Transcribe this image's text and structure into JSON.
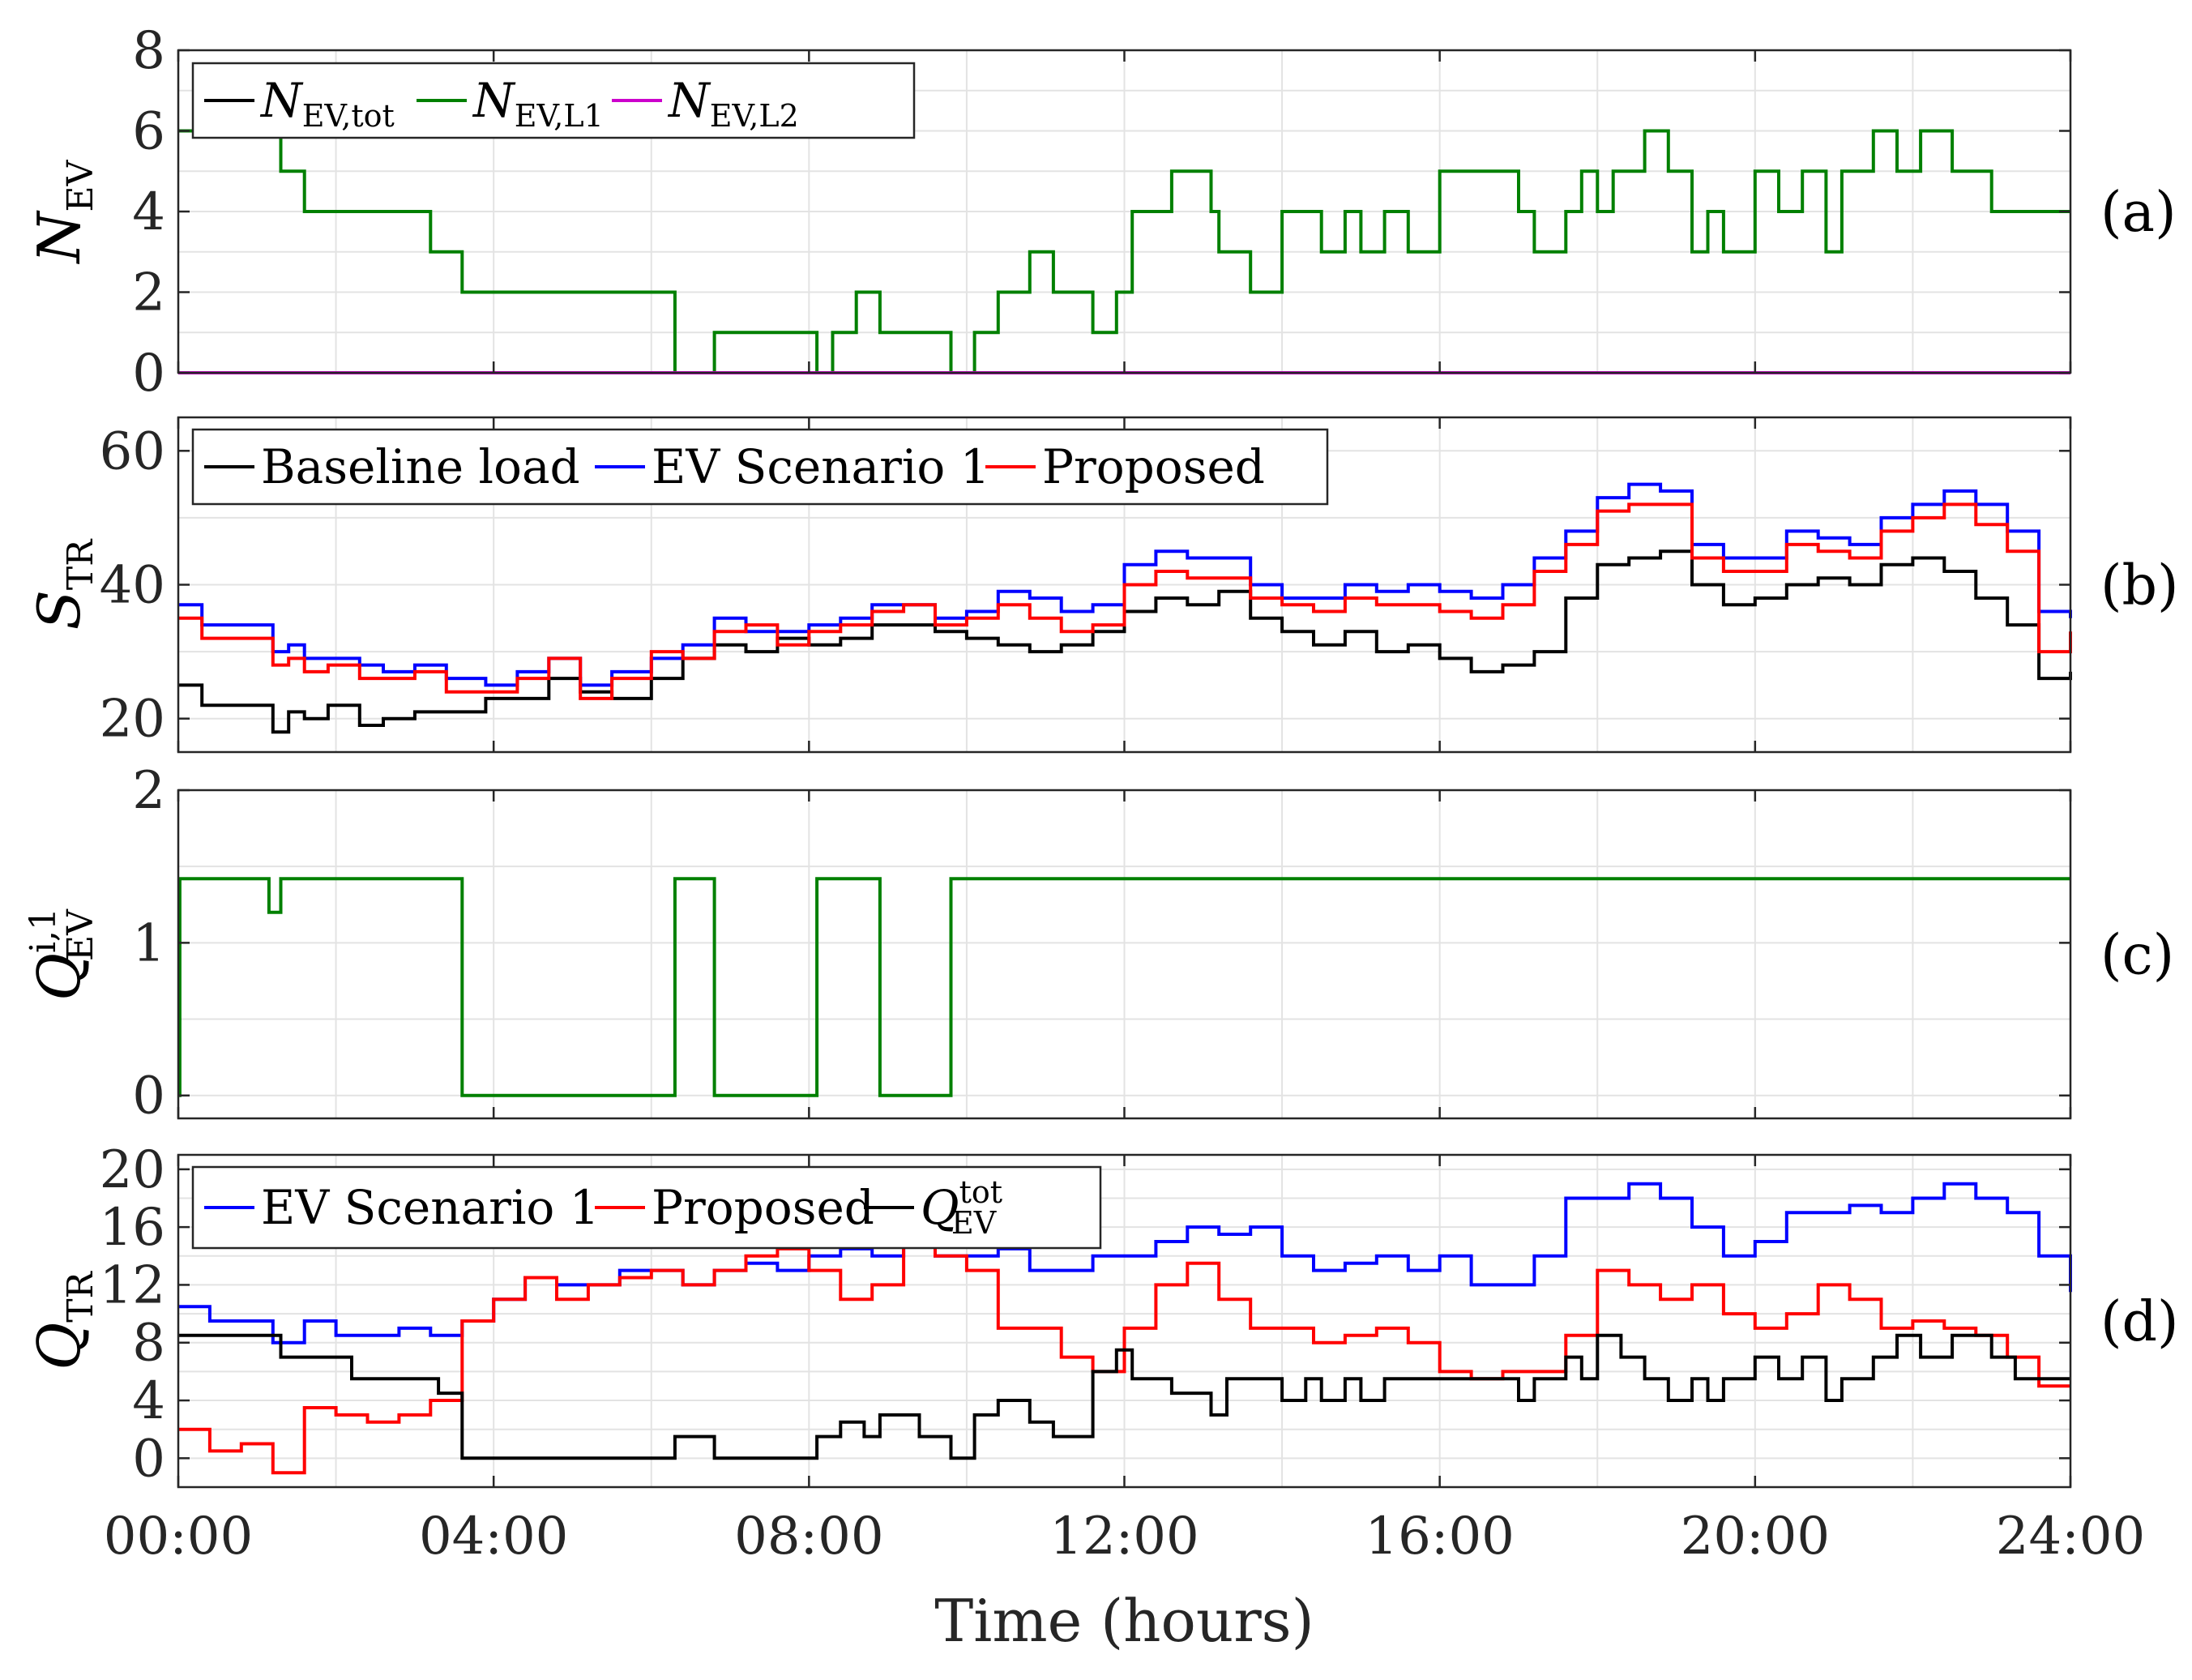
{
  "chart_data": [
    {
      "id": "a",
      "type": "line",
      "panel_tag": "(a)",
      "ylabel": {
        "main": "N",
        "sub": "EV"
      },
      "ylim": [
        0,
        8
      ],
      "yticks": [
        "0",
        "2",
        "4",
        "6",
        "8"
      ],
      "xlim": [
        0,
        24
      ],
      "grid": true,
      "legend": {
        "position": "top-left"
      },
      "series": [
        {
          "name": "N_EV,tot",
          "name_main": "N",
          "name_sub": "EV,tot",
          "color": "#000000",
          "x": [
            0,
            24
          ],
          "values": [
            0,
            0
          ]
        },
        {
          "name": "N_EV,L1",
          "name_main": "N",
          "name_sub": "EV,L1",
          "color": "#008000",
          "x": [
            0,
            0.02,
            1.3,
            1.6,
            3.0,
            3.2,
            3.6,
            6.3,
            6.8,
            8.1,
            8.3,
            8.6,
            8.9,
            9.8,
            10.1,
            10.4,
            10.8,
            11.1,
            11.6,
            11.9,
            12.1,
            12.6,
            13.1,
            13.2,
            13.6,
            14.0,
            14.3,
            14.5,
            14.8,
            15.0,
            15.3,
            15.6,
            16.0,
            17.0,
            17.2,
            17.6,
            17.8,
            18.0,
            18.2,
            18.6,
            18.9,
            19.2,
            19.4,
            19.6,
            20.0,
            20.3,
            20.6,
            20.9,
            21.1,
            21.5,
            21.8,
            22.1,
            22.5,
            23.0,
            23.3,
            23.7,
            24.0
          ],
          "values": [
            6,
            6,
            5,
            4,
            4,
            3,
            2,
            0,
            1,
            0,
            1,
            2,
            1,
            0,
            1,
            2,
            3,
            2,
            1,
            2,
            4,
            5,
            4,
            3,
            2,
            4,
            4,
            3,
            4,
            3,
            4,
            3,
            5,
            4,
            3,
            4,
            5,
            4,
            5,
            6,
            5,
            3,
            4,
            3,
            5,
            4,
            5,
            3,
            5,
            6,
            5,
            6,
            5,
            4,
            4,
            4,
            4
          ]
        },
        {
          "name": "N_EV,L2",
          "name_main": "N",
          "name_sub": "EV,L2",
          "color": "#cc00cc",
          "x": [
            0,
            24
          ],
          "values": [
            0,
            0
          ]
        }
      ]
    },
    {
      "id": "b",
      "type": "line",
      "panel_tag": "(b)",
      "ylabel": {
        "main": "S",
        "sub": "TR"
      },
      "ylim": [
        15,
        65
      ],
      "yticks": [
        "20",
        "40",
        "60"
      ],
      "xlim": [
        0,
        24
      ],
      "grid": true,
      "legend": {
        "position": "top-left"
      },
      "series": [
        {
          "name": "Baseline load",
          "color": "#000000",
          "x": [
            0,
            0.3,
            0.8,
            1.2,
            1.4,
            1.6,
            1.9,
            2.3,
            2.6,
            3.0,
            3.4,
            3.9,
            4.3,
            4.7,
            5.1,
            5.5,
            6.0,
            6.4,
            6.8,
            7.2,
            7.6,
            8.0,
            8.4,
            8.8,
            9.2,
            9.6,
            10.0,
            10.4,
            10.8,
            11.2,
            11.6,
            12.0,
            12.4,
            12.8,
            13.2,
            13.6,
            14.0,
            14.4,
            14.8,
            15.2,
            15.6,
            16.0,
            16.4,
            16.8,
            17.2,
            17.6,
            18.0,
            18.4,
            18.8,
            19.2,
            19.6,
            20.0,
            20.4,
            20.8,
            21.2,
            21.6,
            22.0,
            22.4,
            22.8,
            23.2,
            23.6,
            24.0
          ],
          "values": [
            25,
            22,
            22,
            18,
            21,
            20,
            22,
            19,
            20,
            21,
            21,
            23,
            23,
            26,
            24,
            23,
            26,
            29,
            31,
            30,
            32,
            31,
            32,
            34,
            34,
            33,
            32,
            31,
            30,
            31,
            33,
            36,
            38,
            37,
            39,
            35,
            33,
            31,
            33,
            30,
            31,
            29,
            27,
            28,
            30,
            38,
            43,
            44,
            45,
            40,
            37,
            38,
            40,
            41,
            40,
            43,
            44,
            42,
            38,
            34,
            26,
            27
          ]
        },
        {
          "name": "EV Scenario 1",
          "color": "#0000ff",
          "x": [
            0,
            0.3,
            0.8,
            1.2,
            1.4,
            1.6,
            1.9,
            2.3,
            2.6,
            3.0,
            3.4,
            3.9,
            4.3,
            4.7,
            5.1,
            5.5,
            6.0,
            6.4,
            6.8,
            7.2,
            7.6,
            8.0,
            8.4,
            8.8,
            9.2,
            9.6,
            10.0,
            10.4,
            10.8,
            11.2,
            11.6,
            12.0,
            12.4,
            12.8,
            13.2,
            13.6,
            14.0,
            14.4,
            14.8,
            15.2,
            15.6,
            16.0,
            16.4,
            16.8,
            17.2,
            17.6,
            18.0,
            18.4,
            18.8,
            19.2,
            19.6,
            20.0,
            20.4,
            20.8,
            21.2,
            21.6,
            22.0,
            22.4,
            22.8,
            23.2,
            23.6,
            24.0
          ],
          "values": [
            37,
            34,
            34,
            30,
            31,
            29,
            29,
            28,
            27,
            28,
            26,
            25,
            27,
            29,
            25,
            27,
            29,
            31,
            35,
            33,
            33,
            34,
            35,
            37,
            37,
            35,
            36,
            39,
            38,
            36,
            37,
            43,
            45,
            44,
            44,
            40,
            38,
            38,
            40,
            39,
            40,
            39,
            38,
            40,
            44,
            48,
            53,
            55,
            54,
            46,
            44,
            44,
            48,
            47,
            46,
            50,
            52,
            54,
            52,
            48,
            36,
            35
          ]
        },
        {
          "name": "Proposed",
          "color": "#ff0000",
          "x": [
            0,
            0.3,
            0.8,
            1.2,
            1.4,
            1.6,
            1.9,
            2.3,
            2.6,
            3.0,
            3.4,
            3.9,
            4.3,
            4.7,
            5.1,
            5.5,
            6.0,
            6.4,
            6.8,
            7.2,
            7.6,
            8.0,
            8.4,
            8.8,
            9.2,
            9.6,
            10.0,
            10.4,
            10.8,
            11.2,
            11.6,
            12.0,
            12.4,
            12.8,
            13.2,
            13.6,
            14.0,
            14.4,
            14.8,
            15.2,
            15.6,
            16.0,
            16.4,
            16.8,
            17.2,
            17.6,
            18.0,
            18.4,
            18.8,
            19.2,
            19.6,
            20.0,
            20.4,
            20.8,
            21.2,
            21.6,
            22.0,
            22.4,
            22.8,
            23.2,
            23.6,
            24.0
          ],
          "values": [
            35,
            32,
            32,
            28,
            29,
            27,
            28,
            26,
            26,
            27,
            24,
            24,
            26,
            29,
            23,
            26,
            30,
            29,
            33,
            34,
            31,
            33,
            34,
            36,
            37,
            34,
            35,
            37,
            35,
            33,
            34,
            40,
            42,
            41,
            41,
            38,
            37,
            36,
            38,
            37,
            37,
            36,
            35,
            37,
            42,
            46,
            51,
            52,
            52,
            44,
            42,
            42,
            46,
            45,
            44,
            48,
            50,
            52,
            49,
            45,
            30,
            33
          ]
        }
      ]
    },
    {
      "id": "c",
      "type": "line",
      "panel_tag": "(c)",
      "ylabel": {
        "main": "Q",
        "sup": "i,1",
        "sub": "EV"
      },
      "ylim": [
        -0.15,
        2
      ],
      "yticks": [
        "0",
        "1",
        "2"
      ],
      "xlim": [
        0,
        24
      ],
      "grid": true,
      "series": [
        {
          "name": "",
          "color": "#008000",
          "x": [
            0,
            0.02,
            1.15,
            1.3,
            3.6,
            6.3,
            6.8,
            8.1,
            8.9,
            9.8,
            24.0
          ],
          "values": [
            0,
            1.42,
            1.2,
            1.42,
            0,
            1.42,
            0,
            1.42,
            0,
            1.42,
            1.42
          ]
        }
      ]
    },
    {
      "id": "d",
      "type": "line",
      "panel_tag": "(d)",
      "ylabel": {
        "main": "Q",
        "sub": "TR"
      },
      "ylim": [
        -2,
        21
      ],
      "yticks": [
        "0",
        "4",
        "8",
        "12",
        "16",
        "20"
      ],
      "xlim": [
        0,
        24
      ],
      "xticks": [
        "00:00",
        "04:00",
        "08:00",
        "12:00",
        "16:00",
        "20:00",
        "24:00"
      ],
      "xlabel": "Time (hours)",
      "grid": true,
      "legend": {
        "position": "top-left"
      },
      "series": [
        {
          "name": "EV Scenario 1",
          "color": "#0000ff",
          "x": [
            0,
            0.4,
            0.8,
            1.2,
            1.6,
            2.0,
            2.4,
            2.8,
            3.2,
            3.6,
            4.0,
            4.4,
            4.8,
            5.2,
            5.6,
            6.0,
            6.4,
            6.8,
            7.2,
            7.6,
            8.0,
            8.4,
            8.8,
            9.2,
            9.6,
            10.0,
            10.4,
            10.8,
            11.2,
            11.6,
            12.0,
            12.4,
            12.8,
            13.2,
            13.6,
            14.0,
            14.4,
            14.8,
            15.2,
            15.6,
            16.0,
            16.4,
            16.8,
            17.2,
            17.6,
            18.0,
            18.4,
            18.8,
            19.2,
            19.6,
            20.0,
            20.4,
            20.8,
            21.2,
            21.6,
            22.0,
            22.4,
            22.8,
            23.2,
            23.6,
            24.0
          ],
          "values": [
            10.5,
            9.5,
            9.5,
            8,
            9.5,
            8.5,
            8.5,
            9,
            8.5,
            9.5,
            11,
            12.5,
            12,
            12,
            13,
            13,
            12,
            13,
            13.5,
            13,
            14,
            14.5,
            14,
            15,
            14,
            14,
            14.5,
            13,
            13,
            14,
            14,
            15,
            16,
            15.5,
            16,
            14,
            13,
            13.5,
            14,
            13,
            14,
            12,
            12,
            14,
            18,
            18,
            19,
            18,
            16,
            14,
            15,
            17,
            17,
            17.5,
            17,
            18,
            19,
            18,
            17,
            14,
            11.5
          ]
        },
        {
          "name": "Proposed",
          "color": "#ff0000",
          "x": [
            0,
            0.4,
            0.8,
            1.2,
            1.6,
            2.0,
            2.4,
            2.8,
            3.2,
            3.6,
            4.0,
            4.4,
            4.8,
            5.2,
            5.6,
            6.0,
            6.4,
            6.8,
            7.2,
            7.6,
            8.0,
            8.4,
            8.8,
            9.2,
            9.6,
            10.0,
            10.4,
            10.8,
            11.2,
            11.6,
            12.0,
            12.4,
            12.8,
            13.2,
            13.6,
            14.0,
            14.4,
            14.8,
            15.2,
            15.6,
            16.0,
            16.4,
            16.8,
            17.2,
            17.6,
            18.0,
            18.4,
            18.8,
            19.2,
            19.6,
            20.0,
            20.4,
            20.8,
            21.2,
            21.6,
            22.0,
            22.4,
            22.8,
            23.2,
            23.6,
            24.0
          ],
          "values": [
            2,
            0.5,
            1,
            -1,
            3.5,
            3,
            2.5,
            3,
            4,
            9.5,
            11,
            12.5,
            11,
            12,
            12.5,
            13,
            12,
            13,
            14,
            14.5,
            13,
            11,
            12,
            15.5,
            14,
            13,
            9,
            9,
            7,
            6,
            9,
            12,
            13.5,
            11,
            9,
            9,
            8,
            8.5,
            9,
            8,
            6,
            5.5,
            6,
            6,
            8.5,
            13,
            12,
            11,
            12,
            10,
            9,
            10,
            12,
            11,
            9,
            9.5,
            9,
            8.5,
            7,
            5,
            5
          ]
        },
        {
          "name": "Q_EV^tot",
          "name_main": "Q",
          "name_sup": "tot",
          "name_sub": "EV",
          "color": "#000000",
          "x": [
            0,
            1.15,
            1.3,
            1.6,
            2.2,
            3.0,
            3.3,
            3.6,
            6.3,
            6.8,
            8.1,
            8.4,
            8.7,
            8.9,
            9.4,
            9.8,
            10.1,
            10.4,
            10.8,
            11.1,
            11.6,
            11.9,
            12.1,
            12.6,
            13.1,
            13.3,
            13.6,
            14.0,
            14.3,
            14.5,
            14.8,
            15.0,
            15.3,
            15.6,
            16.0,
            17.0,
            17.2,
            17.6,
            17.8,
            18.0,
            18.3,
            18.6,
            18.9,
            19.2,
            19.4,
            19.6,
            20.0,
            20.3,
            20.6,
            20.9,
            21.1,
            21.5,
            21.8,
            22.1,
            22.5,
            23.0,
            23.3,
            23.7,
            24.0
          ],
          "values": [
            8.5,
            8.5,
            7,
            7,
            5.5,
            5.5,
            4.5,
            0,
            1.5,
            0,
            1.5,
            2.5,
            1.5,
            3,
            1.5,
            0,
            3,
            4,
            2.5,
            1.5,
            6,
            7.5,
            5.5,
            4.5,
            3,
            5.5,
            5.5,
            4,
            5.5,
            4,
            5.5,
            4,
            5.5,
            5.5,
            5.5,
            4,
            5.5,
            7,
            5.5,
            8.5,
            7,
            5.5,
            4,
            5.5,
            4,
            5.5,
            7,
            5.5,
            7,
            4,
            5.5,
            7,
            8.5,
            7,
            8.5,
            7,
            5.5,
            5.5,
            5.5
          ]
        }
      ]
    }
  ]
}
